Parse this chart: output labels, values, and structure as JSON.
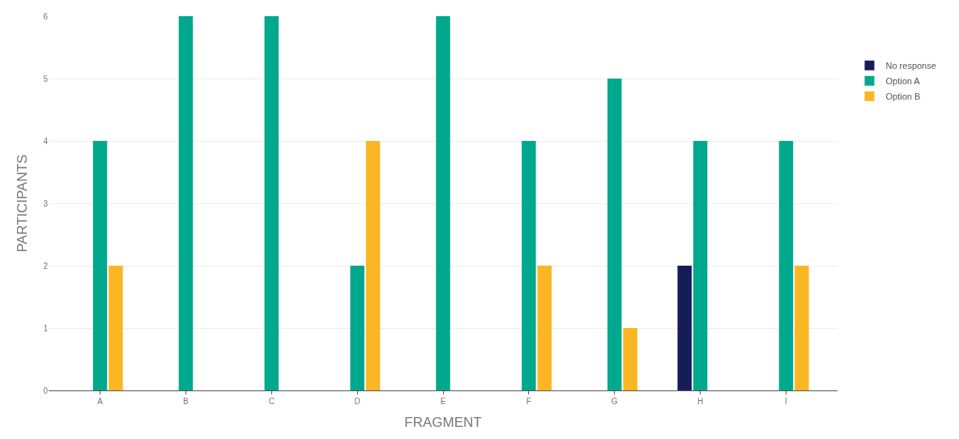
{
  "chart_data": {
    "type": "bar",
    "xlabel": "FRAGMENT",
    "ylabel": "PARTICIPANTS",
    "categories": [
      "A",
      "B",
      "C",
      "D",
      "E",
      "F",
      "G",
      "H",
      "I"
    ],
    "series": [
      {
        "name": "No response",
        "color": "#161c58",
        "values": [
          null,
          null,
          null,
          null,
          null,
          null,
          null,
          2,
          null
        ]
      },
      {
        "name": "Option A",
        "color": "#00a88d",
        "values": [
          4,
          6,
          6,
          2,
          6,
          4,
          5,
          4,
          4
        ]
      },
      {
        "name": "Option B",
        "color": "#fbb623",
        "values": [
          2,
          null,
          null,
          4,
          null,
          2,
          1,
          null,
          2
        ]
      }
    ],
    "ylim": [
      0,
      6
    ],
    "yticks": [
      0,
      1,
      2,
      3,
      4,
      5,
      6
    ],
    "grid": "y",
    "legend": "top right"
  }
}
